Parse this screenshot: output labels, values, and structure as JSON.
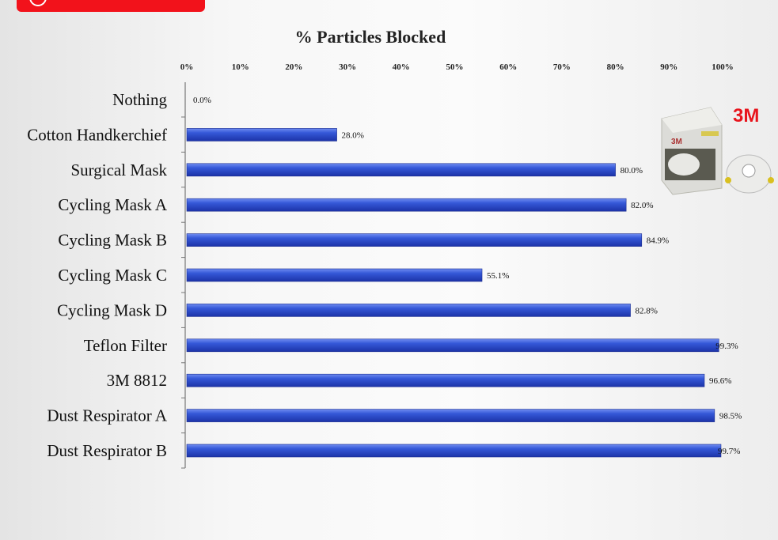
{
  "chart_data": {
    "type": "bar",
    "orientation": "horizontal",
    "title": "% Particles Blocked",
    "categories": [
      "Nothing",
      "Cotton Handkerchief",
      "Surgical Mask",
      "Cycling Mask A",
      "Cycling Mask B",
      "Cycling Mask C",
      "Cycling Mask D",
      "Teflon Filter",
      "3M 8812",
      "Dust Respirator A",
      "Dust Respirator B"
    ],
    "values": [
      0.0,
      28.0,
      80.0,
      82.0,
      84.9,
      55.1,
      82.8,
      99.3,
      96.6,
      98.5,
      99.7
    ],
    "value_labels": [
      "0.0%",
      "28.0%",
      "80.0%",
      "82.0%",
      "84.9%",
      "55.1%",
      "82.8%",
      "99.3%",
      "96.6%",
      "98.5%",
      "99.7%"
    ],
    "xlim": [
      0,
      100
    ],
    "x_ticks": [
      "0%",
      "10%",
      "20%",
      "30%",
      "40%",
      "50%",
      "60%",
      "70%",
      "80%",
      "90%",
      "100%"
    ],
    "x_axis_position": "top",
    "grid": false,
    "bar_color": "#2f4fd0"
  },
  "image": {
    "logo_text": "3M",
    "logo_color": "#e8141c"
  },
  "badge_color": "#f2121b"
}
